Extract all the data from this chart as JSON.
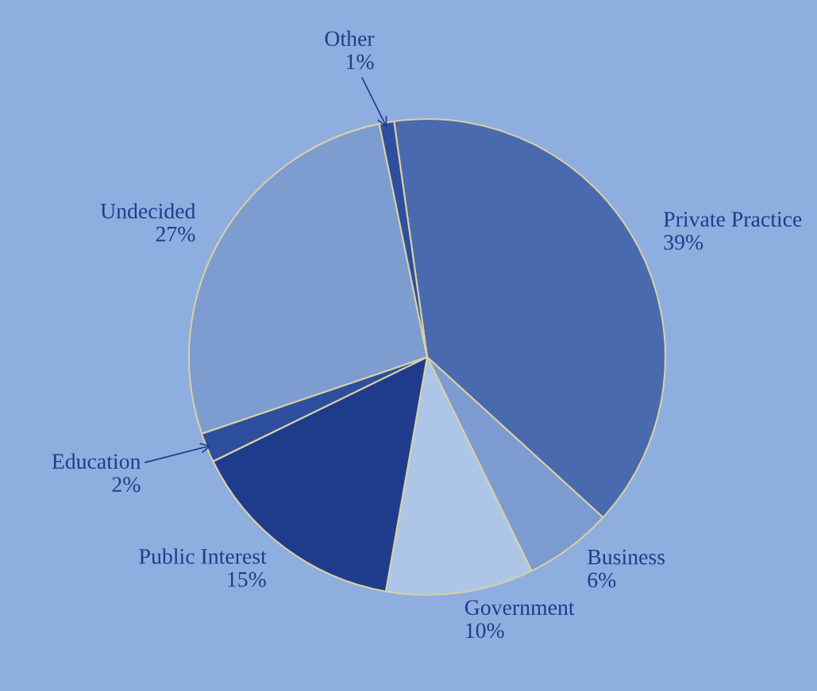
{
  "chart_data": {
    "type": "pie",
    "categories": [
      "Private Practice",
      "Business",
      "Government",
      "Public Interest",
      "Education",
      "Undecided",
      "Other"
    ],
    "values": [
      39,
      6,
      10,
      15,
      2,
      27,
      1
    ],
    "value_labels": [
      "39%",
      "6%",
      "10%",
      "15%",
      "2%",
      "27%",
      "1%"
    ],
    "colors": [
      "#4a6aaf",
      "#7c9bd0",
      "#adc6e8",
      "#1f3c8c",
      "#2e4f9e",
      "#7d9ccf",
      "#2e4f9e"
    ]
  }
}
